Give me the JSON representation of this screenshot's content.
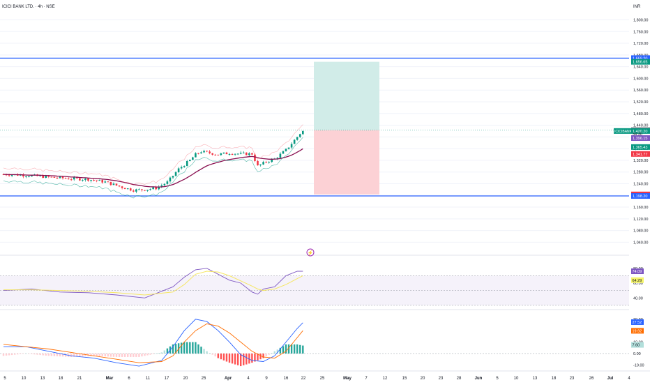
{
  "header": {
    "title": "ICICI BANK LTD. · 4h · NSE",
    "currency": "INR"
  },
  "colors": {
    "up": "#089981",
    "down": "#f23645",
    "blue": "#2962ff",
    "purple": "#7e57c2",
    "ema": "#880e4f",
    "macd": "#2962ff",
    "signal": "#ff6d00",
    "rr_profit": "#d1ece8",
    "rr_loss": "#fcd1d5",
    "grid": "#f0f3fa",
    "text": "#131722"
  },
  "price_axis": {
    "ticks": [
      "1,800.00",
      "1,760.00",
      "1,720.00",
      "1,680.00",
      "1,640.00",
      "1,600.00",
      "1,560.00",
      "1,520.00",
      "1,480.00",
      "1,440.00",
      "1,400.00",
      "1,360.00",
      "1,320.00",
      "1,280.00",
      "1,240.00",
      "1,200.00",
      "1,160.00",
      "1,120.00",
      "1,080.00",
      "1,040.00"
    ],
    "labels": [
      {
        "text": "1,669.20",
        "value": 1669.2,
        "color": "#2962ff"
      },
      {
        "text": "1,656.65",
        "value": 1656.65,
        "color": "#089981"
      },
      {
        "text": "1,423.15",
        "value": 1423.15,
        "color": "#787b86"
      },
      {
        "text": "1,420.20",
        "value": 1420.2,
        "color": "#089981"
      },
      {
        "text": "34:30",
        "value": 1410.5,
        "color": "none"
      },
      {
        "text": "1,396.15",
        "value": 1396.15,
        "color": "#7e57c2"
      },
      {
        "text": "1,365.43",
        "value": 1365.43,
        "color": "#089981"
      },
      {
        "text": "1,341.77",
        "value": 1341.77,
        "color": "#f23645"
      },
      {
        "text": "1,203.45",
        "value": 1203.45,
        "color": "#f23645"
      },
      {
        "text": "1,198.20",
        "value": 1198.2,
        "color": "#2962ff"
      }
    ],
    "symbol_tag": "ICICIBANK"
  },
  "rsi_axis": {
    "ticks": [
      "80.00",
      "60.00",
      "40.00"
    ],
    "labels": [
      {
        "text": "74.09",
        "color": "#7e57c2"
      },
      {
        "text": "64.29",
        "color": "#f5f56b"
      }
    ]
  },
  "macd_axis": {
    "ticks": [
      "30.00",
      "10.00",
      "0.00",
      "-10.00"
    ],
    "labels": [
      {
        "text": "27.52",
        "color": "#2962ff"
      },
      {
        "text": "19.92",
        "color": "#ff6d00"
      },
      {
        "text": "7.60",
        "color": "#b2dfdb"
      }
    ]
  },
  "time_axis": [
    "5",
    "10",
    "13",
    "18",
    "21",
    "Mar",
    "6",
    "11",
    "17",
    "20",
    "25",
    "Apr",
    "4",
    "9",
    "16",
    "22",
    "25",
    "May",
    "7",
    "12",
    "15",
    "20",
    "23",
    "28",
    "Jun",
    "5",
    "10",
    "13",
    "18",
    "23",
    "26",
    "Jul",
    "4"
  ],
  "chart_data": [
    {
      "type": "candlestick",
      "title": "ICICI BANK LTD. · 4h · NSE",
      "ylabel": "INR",
      "ylim": [
        1010,
        1825
      ],
      "horizontal_lines": [
        1669.2,
        1198.2
      ],
      "risk_reward": {
        "entry": 1423.15,
        "target": 1656.65,
        "stop": 1203.45
      },
      "x_range": [
        0,
        140
      ],
      "close_series": [
        {
          "x": 0,
          "close": 1272
        },
        {
          "x": 6,
          "close": 1270
        },
        {
          "x": 12,
          "close": 1266
        },
        {
          "x": 18,
          "close": 1261
        },
        {
          "x": 24,
          "close": 1257
        },
        {
          "x": 30,
          "close": 1255
        },
        {
          "x": 36,
          "close": 1246
        },
        {
          "x": 42,
          "close": 1228
        },
        {
          "x": 46,
          "close": 1218
        },
        {
          "x": 50,
          "close": 1220
        },
        {
          "x": 54,
          "close": 1225
        },
        {
          "x": 58,
          "close": 1245
        },
        {
          "x": 62,
          "close": 1290
        },
        {
          "x": 66,
          "close": 1320
        },
        {
          "x": 68,
          "close": 1340
        },
        {
          "x": 70,
          "close": 1350
        },
        {
          "x": 73,
          "close": 1345
        },
        {
          "x": 76,
          "close": 1340
        },
        {
          "x": 80,
          "close": 1345
        },
        {
          "x": 84,
          "close": 1342
        },
        {
          "x": 88,
          "close": 1342
        },
        {
          "x": 90,
          "close": 1300
        },
        {
          "x": 93,
          "close": 1315
        },
        {
          "x": 96,
          "close": 1325
        },
        {
          "x": 100,
          "close": 1355
        },
        {
          "x": 104,
          "close": 1400
        },
        {
          "x": 106,
          "close": 1423
        }
      ],
      "series": [
        {
          "name": "EMA"
        }
      ]
    },
    {
      "type": "line",
      "ylim": [
        28,
        92
      ],
      "series": [
        {
          "name": "RSI",
          "x": [
            0,
            10,
            20,
            30,
            40,
            50,
            60,
            64,
            68,
            72,
            76,
            80,
            84,
            88,
            90,
            92,
            96,
            100,
            104,
            106
          ],
          "values": [
            50,
            52,
            48,
            47,
            44,
            40,
            55,
            68,
            78,
            80,
            72,
            64,
            60,
            48,
            45,
            52,
            55,
            70,
            76,
            76
          ]
        },
        {
          "name": "RSI MA",
          "x": [
            0,
            10,
            20,
            30,
            40,
            50,
            60,
            64,
            68,
            72,
            76,
            80,
            84,
            88,
            90,
            92,
            96,
            100,
            104,
            106
          ],
          "values": [
            51,
            51,
            50,
            49,
            47,
            44,
            48,
            58,
            72,
            76,
            75,
            70,
            63,
            56,
            52,
            50,
            52,
            58,
            66,
            70
          ]
        }
      ]
    },
    {
      "type": "line",
      "ylim": [
        -14,
        36
      ],
      "series": [
        {
          "name": "MACD",
          "x": [
            0,
            8,
            16,
            24,
            32,
            40,
            48,
            56,
            60,
            64,
            68,
            72,
            76,
            80,
            84,
            88,
            92,
            96,
            100,
            104,
            106
          ],
          "values": [
            6,
            6,
            2,
            -2,
            -4,
            -8,
            -11,
            -6,
            6,
            20,
            30,
            28,
            20,
            10,
            -1,
            -6,
            -7,
            -2,
            10,
            22,
            27
          ]
        },
        {
          "name": "Signal",
          "x": [
            0,
            8,
            16,
            24,
            32,
            40,
            48,
            56,
            60,
            64,
            68,
            72,
            76,
            80,
            84,
            88,
            92,
            96,
            100,
            104,
            106
          ],
          "values": [
            8,
            6,
            4,
            1,
            -2,
            -5,
            -8,
            -7,
            -2,
            10,
            20,
            26,
            24,
            18,
            10,
            2,
            -3,
            -4,
            2,
            14,
            20
          ]
        }
      ]
    }
  ]
}
